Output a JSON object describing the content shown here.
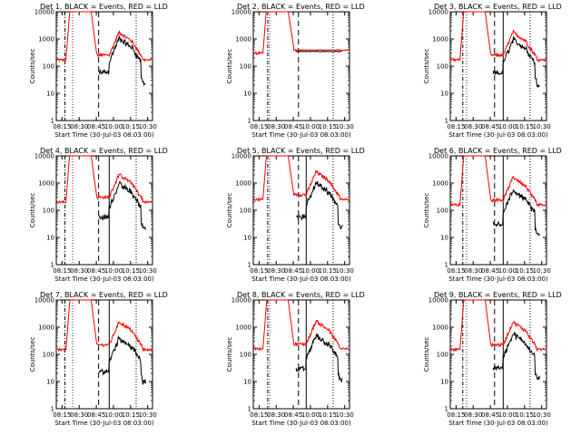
{
  "chart_data": {
    "type": "line",
    "layout": "3x3 grid",
    "title_template": "Det {n}, BLACK = Events, RED = LLD",
    "xlabel": "Start Time (30-Jul-03 08:03:00)",
    "ylabel": "Counts/sec",
    "yscale": "log",
    "ylim": [
      1,
      10000
    ],
    "y_ticks": [
      "1",
      "10",
      "100",
      "1000",
      "10000"
    ],
    "x_tick_labels": [
      "08:15",
      "08:30",
      "08:45",
      "10:00",
      "10:15",
      "10:30"
    ],
    "series_names": [
      "Events",
      "LLD"
    ],
    "series_colors": {
      "Events": "#000000",
      "LLD": "#ff0000"
    },
    "panels": [
      {
        "det": "1",
        "title": "Det 1, BLACK = Events, RED = LLD",
        "lld_level": 170,
        "ev_scale": 0.68,
        "dash1": 0.09,
        "dash2": 0.44,
        "solid": 0.0,
        "red_only": false
      },
      {
        "det": "2",
        "title": "Det 2, BLACK = Events, RED = LLD",
        "lld_level": 300,
        "ev_scale": 0.88,
        "dash1": 0.15,
        "dash2": 0.47,
        "solid": 0.0,
        "red_only": true
      },
      {
        "det": "3",
        "title": "Det 3, BLACK = Events, RED = LLD",
        "lld_level": 170,
        "ev_scale": 0.62,
        "dash1": 0.13,
        "dash2": 0.46,
        "solid": 0.55,
        "red_only": false
      },
      {
        "det": "4",
        "title": "Det 4, BLACK = Events, RED = LLD",
        "lld_level": 200,
        "ev_scale": 0.52,
        "dash1": 0.09,
        "dash2": 0.44,
        "solid": 0.55,
        "red_only": false
      },
      {
        "det": "5",
        "title": "Det 5, BLACK = Events, RED = LLD",
        "lld_level": 250,
        "ev_scale": 0.45,
        "dash1": 0.15,
        "dash2": 0.47,
        "solid": 0.55,
        "red_only": false
      },
      {
        "det": "6",
        "title": "Det 6, BLACK = Events, RED = LLD",
        "lld_level": 160,
        "ev_scale": 0.38,
        "dash1": 0.13,
        "dash2": 0.46,
        "solid": 0.55,
        "red_only": false
      },
      {
        "det": "7",
        "title": "Det 7, BLACK = Events, RED = LLD",
        "lld_level": 150,
        "ev_scale": 0.3,
        "dash1": 0.09,
        "dash2": 0.44,
        "solid": 0.55,
        "red_only": false
      },
      {
        "det": "8",
        "title": "Det 8, BLACK = Events, RED = LLD",
        "lld_level": 160,
        "ev_scale": 0.35,
        "dash1": 0.15,
        "dash2": 0.47,
        "solid": 0.55,
        "red_only": false
      },
      {
        "det": "9",
        "title": "Det 9, BLACK = Events, RED = LLD",
        "lld_level": 150,
        "ev_scale": 0.42,
        "dash1": 0.13,
        "dash2": 0.46,
        "solid": 0.55,
        "red_only": false
      }
    ]
  }
}
